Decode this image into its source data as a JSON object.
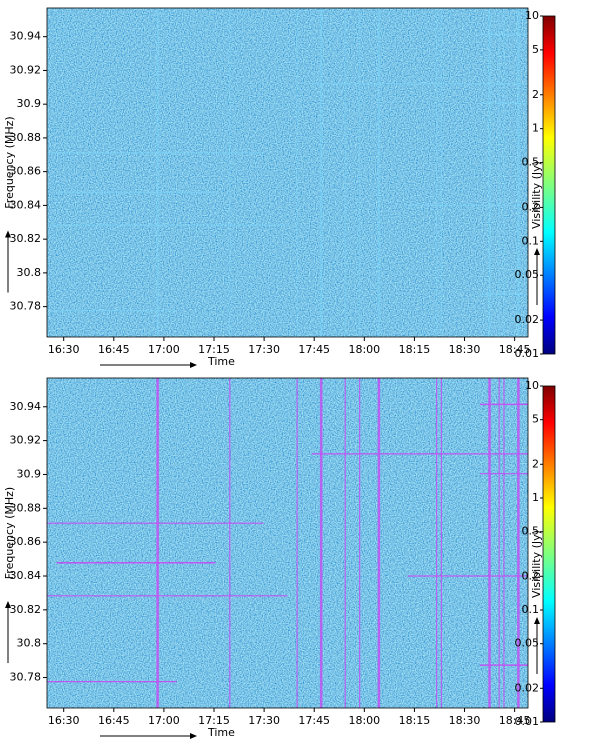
{
  "chart_data": [
    {
      "type": "heatmap",
      "xlabel": "Time",
      "ylabel": "Frequency (MHz)",
      "colorbar_label": "Visibility (Jy)",
      "xlim": [
        985,
        1129
      ],
      "xticks": [
        {
          "value": 990,
          "label": "16:30"
        },
        {
          "value": 1005,
          "label": "16:45"
        },
        {
          "value": 1020,
          "label": "17:00"
        },
        {
          "value": 1035,
          "label": "17:15"
        },
        {
          "value": 1050,
          "label": "17:30"
        },
        {
          "value": 1065,
          "label": "17:45"
        },
        {
          "value": 1080,
          "label": "18:00"
        },
        {
          "value": 1095,
          "label": "18:15"
        },
        {
          "value": 1110,
          "label": "18:30"
        },
        {
          "value": 1125,
          "label": "18:45"
        }
      ],
      "ylim": [
        30.762,
        30.957
      ],
      "yticks": [
        30.94,
        30.92,
        30.9,
        30.88,
        30.86,
        30.84,
        30.82,
        30.8,
        30.78
      ],
      "clim": [
        0.01,
        10
      ],
      "clog": true,
      "colormap": "jet",
      "cticks": [
        0.01,
        0.02,
        0.05,
        0.1,
        0.2,
        0.5,
        1,
        2,
        5,
        10
      ]
    },
    {
      "type": "heatmap",
      "xlabel": "Time",
      "ylabel": "Frequency (MHz)",
      "colorbar_label": "Visibility (Jy)",
      "xlim": [
        985,
        1129
      ],
      "xticks": [
        {
          "value": 990,
          "label": "16:30"
        },
        {
          "value": 1005,
          "label": "16:45"
        },
        {
          "value": 1020,
          "label": "17:00"
        },
        {
          "value": 1035,
          "label": "17:15"
        },
        {
          "value": 1050,
          "label": "17:30"
        },
        {
          "value": 1065,
          "label": "17:45"
        },
        {
          "value": 1080,
          "label": "18:00"
        },
        {
          "value": 1095,
          "label": "18:15"
        },
        {
          "value": 1110,
          "label": "18:30"
        },
        {
          "value": 1125,
          "label": "18:45"
        }
      ],
      "ylim": [
        30.762,
        30.957
      ],
      "yticks": [
        30.94,
        30.92,
        30.9,
        30.88,
        30.86,
        30.84,
        30.82,
        30.8,
        30.78
      ],
      "clim": [
        0.01,
        10
      ],
      "clog": true,
      "colormap": "jet",
      "flag_color": "#c64cf5",
      "cticks": [
        0.01,
        0.02,
        0.05,
        0.1,
        0.2,
        0.5,
        1,
        2,
        5,
        10
      ]
    }
  ]
}
